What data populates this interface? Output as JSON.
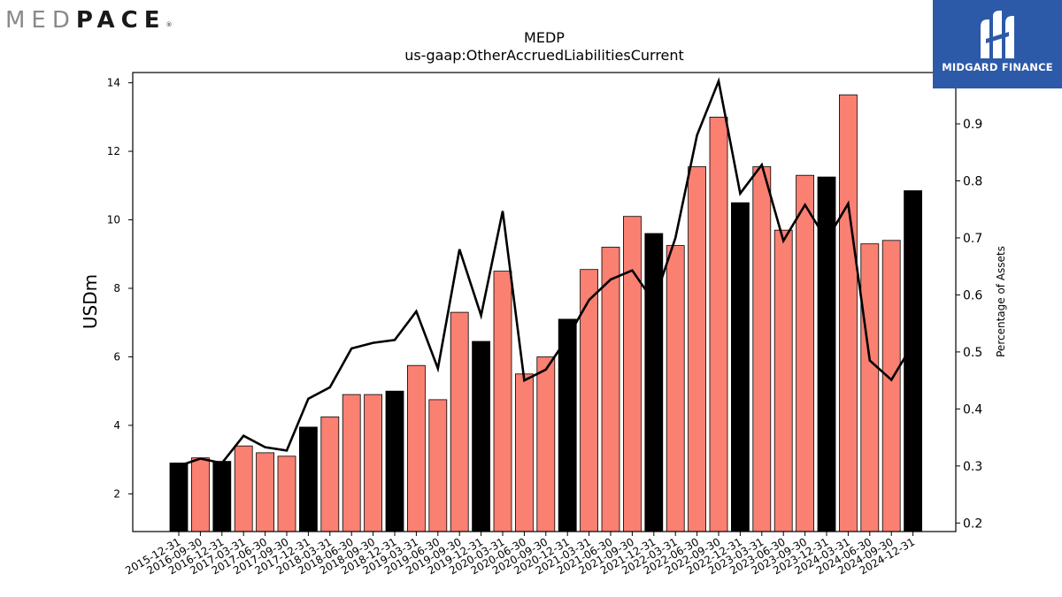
{
  "brand": {
    "left_logo_part1": "MED",
    "left_logo_part2": "PACE",
    "left_logo_reg": "®",
    "right_logo_text": "MIDGARD FINANCE",
    "right_logo_icon": "midgard-m-icon",
    "right_logo_bg": "#2d5aa8"
  },
  "chart_data": {
    "type": "bar",
    "title": "MEDP",
    "subtitle": "us-gaap:OtherAccruedLiabilitiesCurrent",
    "ylabel": "USDm",
    "y2label": "Percentage of Assets",
    "ylim": [
      0.9,
      14.3
    ],
    "y2lim": [
      0.185,
      0.99
    ],
    "yticks": [
      2,
      4,
      6,
      8,
      10,
      12,
      14
    ],
    "y2ticks": [
      0.2,
      0.3,
      0.4,
      0.5,
      0.6,
      0.7,
      0.8,
      0.9
    ],
    "colors": {
      "annual": "#000000",
      "quarterly": "#fa8072",
      "line": "#000000"
    },
    "categories": [
      "2015-12-31",
      "2016-09-30",
      "2016-12-31",
      "2017-03-31",
      "2017-06-30",
      "2017-09-30",
      "2017-12-31",
      "2018-03-31",
      "2018-06-30",
      "2018-09-30",
      "2018-12-31",
      "2019-03-31",
      "2019-06-30",
      "2019-09-30",
      "2019-12-31",
      "2020-03-31",
      "2020-06-30",
      "2020-09-30",
      "2020-12-31",
      "2021-03-31",
      "2021-06-30",
      "2021-09-30",
      "2021-12-31",
      "2022-03-31",
      "2022-06-30",
      "2022-09-30",
      "2022-12-31",
      "2023-03-31",
      "2023-06-30",
      "2023-09-30",
      "2023-12-31",
      "2024-03-31",
      "2024-06-30",
      "2024-09-30",
      "2024-12-31"
    ],
    "series": [
      {
        "kind": "bar",
        "values": [
          2.9,
          3.05,
          2.95,
          3.4,
          3.2,
          3.1,
          3.95,
          4.25,
          4.9,
          4.9,
          5.0,
          5.75,
          4.75,
          7.3,
          6.45,
          8.5,
          5.5,
          6.0,
          7.1,
          8.55,
          9.2,
          10.1,
          9.6,
          9.25,
          11.55,
          13.0,
          10.5,
          11.55,
          9.7,
          11.3,
          11.25,
          13.65,
          9.3,
          9.4,
          10.85
        ],
        "annual": [
          true,
          false,
          true,
          false,
          false,
          false,
          true,
          false,
          false,
          false,
          true,
          false,
          false,
          false,
          true,
          false,
          false,
          false,
          true,
          false,
          false,
          false,
          true,
          false,
          false,
          false,
          true,
          false,
          false,
          false,
          true,
          false,
          false,
          false,
          true
        ]
      },
      {
        "kind": "line",
        "axis": "right",
        "values": [
          0.3,
          0.313,
          0.305,
          0.353,
          0.333,
          0.327,
          0.418,
          0.438,
          0.506,
          0.516,
          0.521,
          0.571,
          0.471,
          0.68,
          0.564,
          0.747,
          0.45,
          0.469,
          0.525,
          0.591,
          0.627,
          0.643,
          0.588,
          0.7,
          0.88,
          0.975,
          0.778,
          0.828,
          0.695,
          0.758,
          0.696,
          0.76,
          0.485,
          0.451,
          0.514
        ]
      }
    ]
  }
}
